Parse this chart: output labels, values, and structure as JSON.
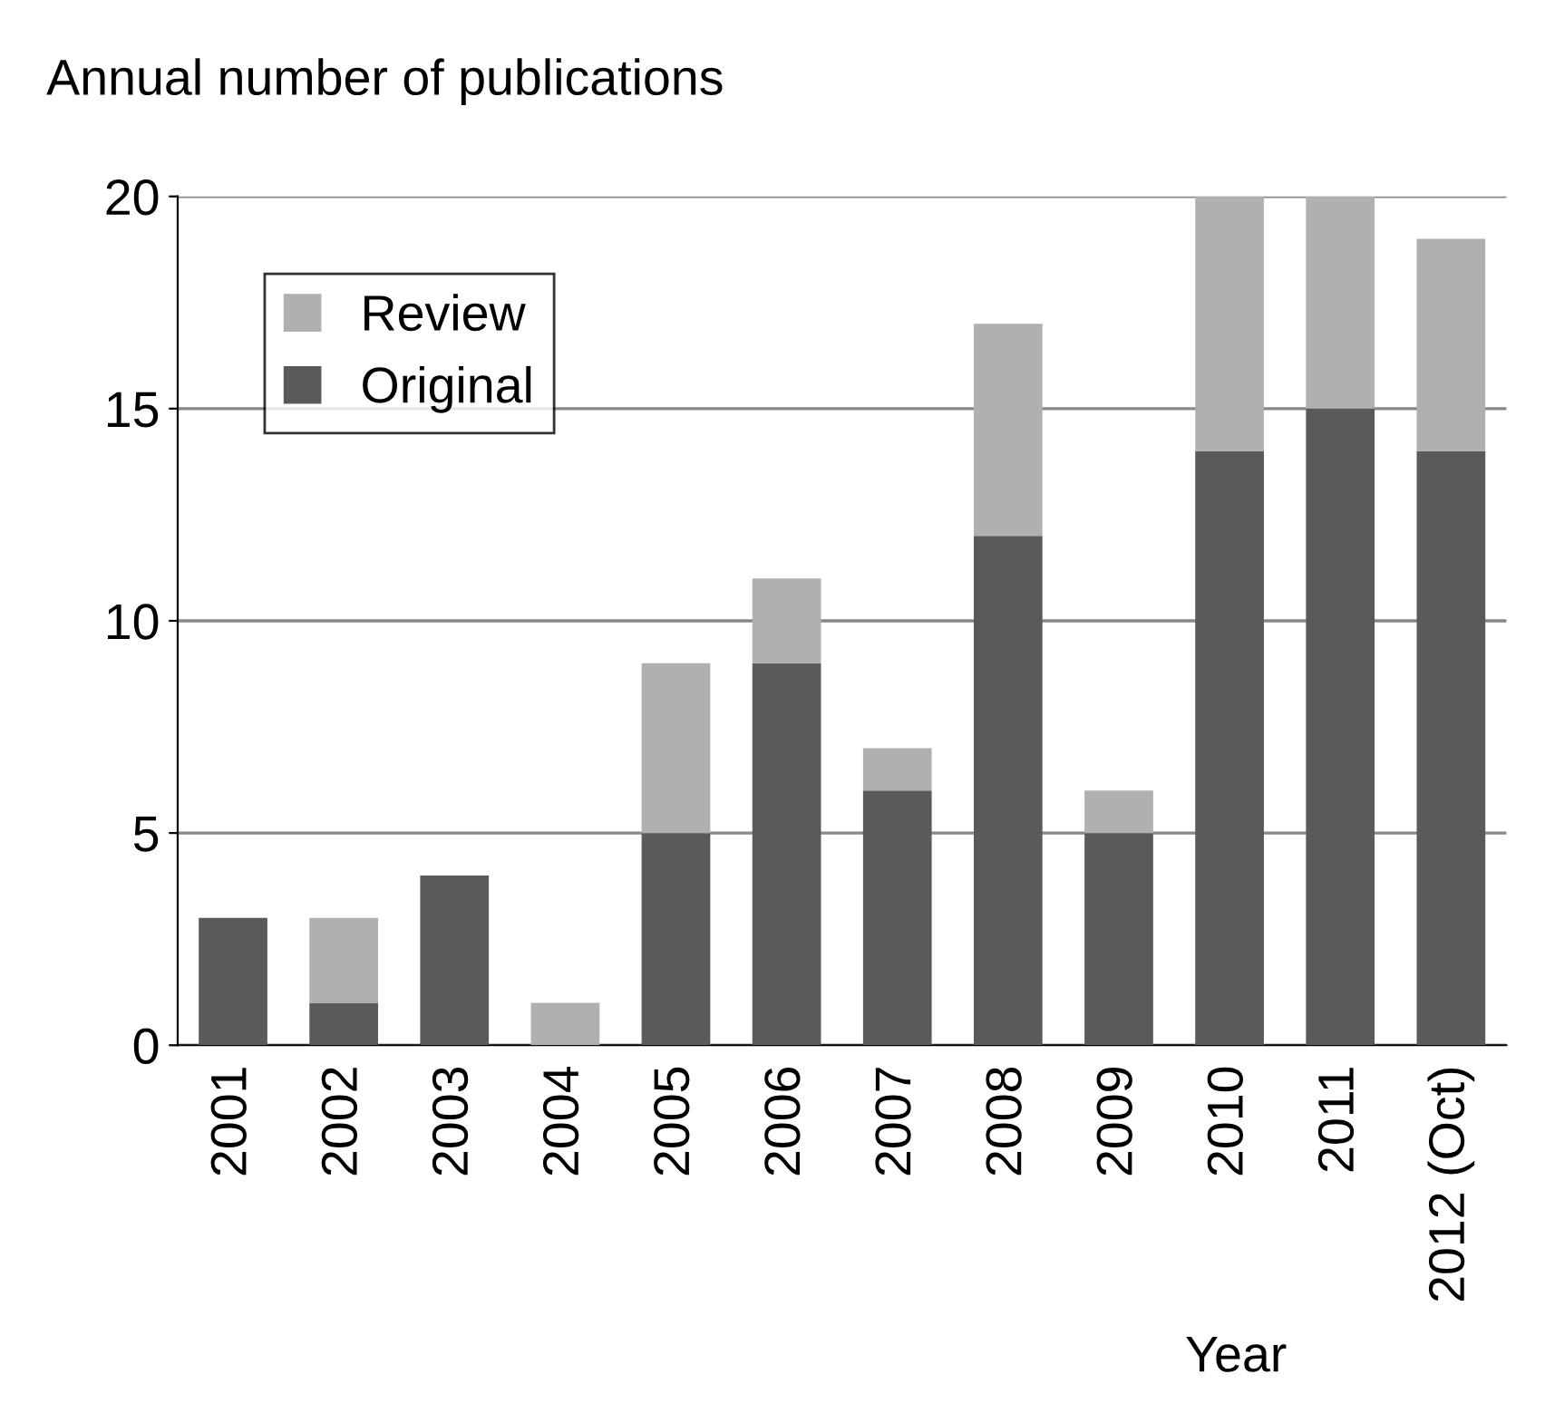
{
  "chart_data": {
    "type": "bar",
    "stacked": true,
    "ylabel": "Annual number of publications",
    "xlabel": "Year",
    "categories": [
      "2001",
      "2002",
      "2003",
      "2004",
      "2005",
      "2006",
      "2007",
      "2008",
      "2009",
      "2010",
      "2011",
      "2012 (Oct)"
    ],
    "series": [
      {
        "name": "Original",
        "color": "#5a5a5a",
        "values": [
          3,
          1,
          4,
          0,
          5,
          9,
          6,
          12,
          5,
          14,
          15,
          14
        ]
      },
      {
        "name": "Review",
        "color": "#b0b0b0",
        "values": [
          0,
          2,
          0,
          1,
          4,
          2,
          1,
          5,
          1,
          6,
          5,
          5
        ]
      }
    ],
    "ylim": [
      0,
      20
    ],
    "yticks": [
      0,
      5,
      10,
      15,
      20
    ],
    "grid": "y",
    "legend": "top left"
  }
}
